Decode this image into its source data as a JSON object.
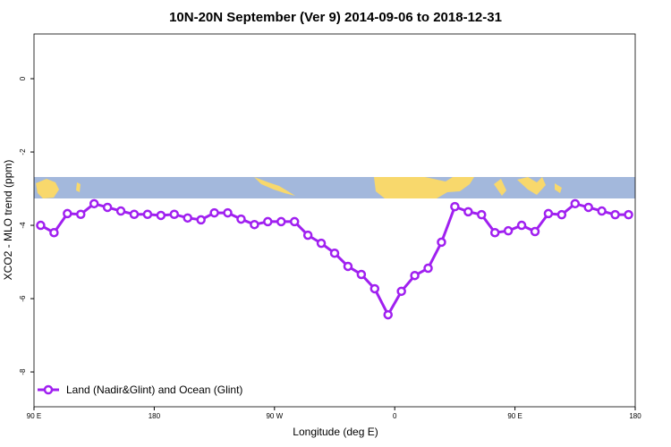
{
  "chart_data": {
    "type": "line",
    "title": "10N-20N September (Ver 9)   2014-09-06 to 2018-12-31",
    "x_label": "Longitude (deg E)",
    "y_label": "XCO2 - MLO trend (ppm)",
    "xlim": [
      90,
      540
    ],
    "ylim": [
      -8.95,
      1.22
    ],
    "xticks": [
      {
        "value": 90,
        "label": "90 E"
      },
      180,
      {
        "value": 270,
        "label": "90 W"
      },
      {
        "value": 360,
        "label": "0"
      },
      {
        "value": 450,
        "label": "90 E"
      },
      {
        "value": 540,
        "label": "180"
      }
    ],
    "yticks": [
      0,
      -2,
      -4,
      -6,
      -8
    ],
    "legend": "bottom-left",
    "series": [
      {
        "name": "Land (Nadir&Glint) and Ocean (Glint)",
        "color": "#a020f0",
        "x": [
          95,
          105,
          115,
          125,
          135,
          145,
          155,
          165,
          175,
          185,
          195,
          205,
          215,
          225,
          235,
          245,
          255,
          265,
          275,
          285,
          295,
          305,
          315,
          325,
          335,
          345,
          355,
          365,
          375,
          385,
          395,
          405,
          415,
          425,
          435,
          445,
          455,
          465,
          475,
          485,
          495,
          505,
          515,
          525,
          535
        ],
        "values": [
          -4.0,
          -4.2,
          -3.68,
          -3.7,
          -3.41,
          -3.51,
          -3.61,
          -3.7,
          -3.7,
          -3.73,
          -3.7,
          -3.8,
          -3.85,
          -3.66,
          -3.66,
          -3.83,
          -3.98,
          -3.9,
          -3.9,
          -3.9,
          -4.27,
          -4.49,
          -4.76,
          -5.12,
          -5.34,
          -5.73,
          -6.44,
          -5.8,
          -5.37,
          -5.17,
          -4.46,
          -3.49,
          -3.63,
          -3.71,
          -4.2,
          -4.15,
          -4.0,
          -4.17,
          -3.68,
          -3.71,
          -3.41,
          -3.51,
          -3.61,
          -3.71,
          -3.71
        ]
      }
    ]
  }
}
